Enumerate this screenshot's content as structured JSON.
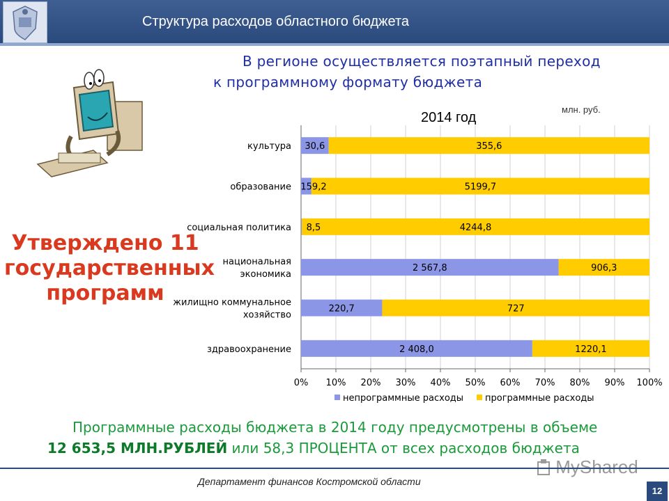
{
  "header": {
    "title": "Структура расходов областного бюджета"
  },
  "subtitle": {
    "line1": "В регионе осуществляется поэтапный переход",
    "line2": "к программному формату бюджета"
  },
  "callout": {
    "line1": "Утверждено 11",
    "line2": "государственных",
    "line3": "программ"
  },
  "chart_data": {
    "type": "bar",
    "orientation": "horizontal",
    "stacked": "100%",
    "title": "2014 год",
    "unit": "млн. руб.",
    "categories": [
      "культура",
      "образование",
      "социальная политика",
      "национальная экономика",
      "жилищно коммунальное хозяйство",
      "здравоохранение"
    ],
    "category_lines": [
      [
        "культура"
      ],
      [
        "образование"
      ],
      [
        "социальная политика"
      ],
      [
        "национальная",
        "экономика"
      ],
      [
        "жилищно коммунальное",
        "хозяйство"
      ],
      [
        "здравоохранение"
      ]
    ],
    "series": [
      {
        "name": "непрограммные расходы",
        "color": "#8c96e6",
        "values": [
          30.6,
          159.2,
          8.5,
          2567.8,
          220.7,
          2408.0
        ],
        "labels": [
          "30,6",
          "159,2",
          "8,5",
          "2 567,8",
          "220,7",
          "2 408,0"
        ]
      },
      {
        "name": "программные расходы",
        "color": "#ffcc00",
        "values": [
          355.6,
          5199.7,
          4244.8,
          906.3,
          727,
          1220.1
        ],
        "labels": [
          "355,6",
          "5199,7",
          "4244,8",
          "906,3",
          "727",
          "1220,1"
        ]
      }
    ],
    "x_ticks": [
      "0%",
      "10%",
      "20%",
      "30%",
      "40%",
      "50%",
      "60%",
      "70%",
      "80%",
      "90%",
      "100%"
    ],
    "xlim": [
      0,
      100
    ],
    "legend_position": "bottom"
  },
  "summary": {
    "line1": "Программные расходы бюджета в 2014 году предусмотрены в объеме",
    "amount": "12 653,5 МЛН.РУБЛЕЙ",
    "rest": " или 58,3 ПРОЦЕНТА от всех расходов бюджета"
  },
  "footer": {
    "department": "Департамент финансов Костромской области",
    "page": "12",
    "watermark": "MyShared"
  }
}
